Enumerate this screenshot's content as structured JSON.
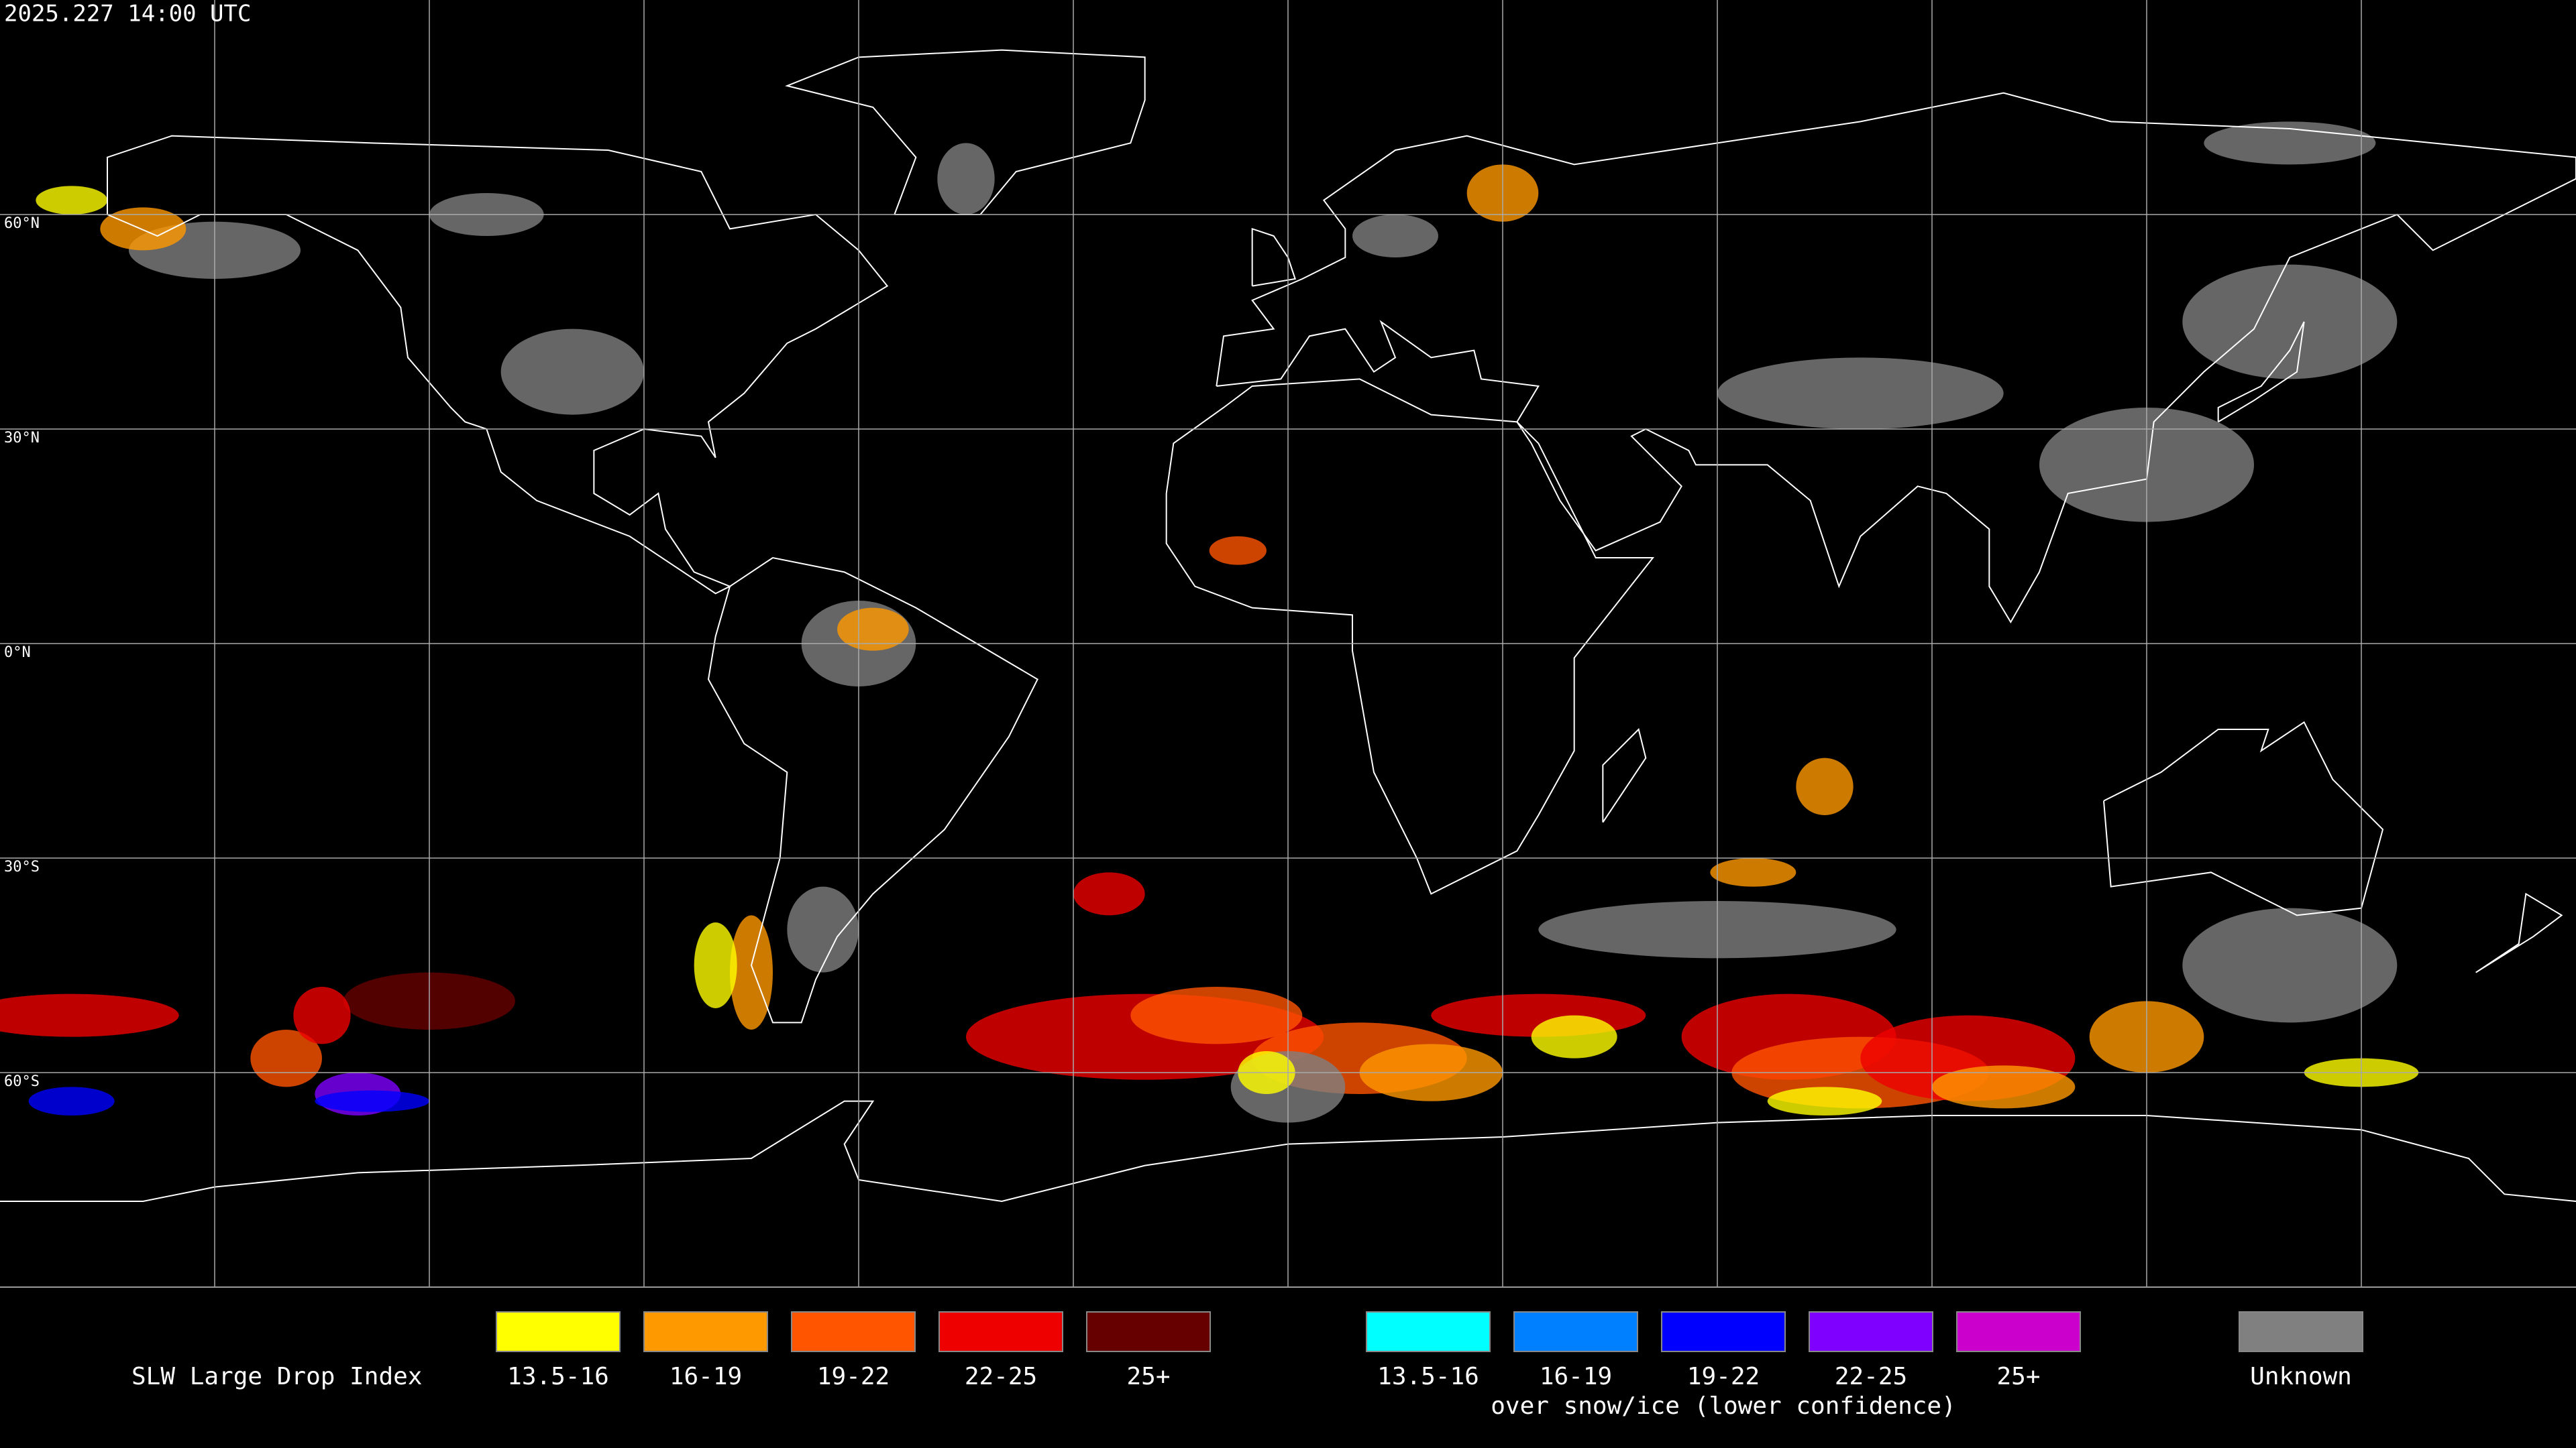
{
  "title": "2025.227 14:00 UTC",
  "grid_labels": [
    "60°N",
    "30°N",
    "0°N",
    "30°S",
    "60°S"
  ],
  "legend": {
    "title": "SLW Large Drop Index",
    "groups": [
      {
        "items": [
          {
            "label": "13.5-16",
            "color": "#ffff00"
          },
          {
            "label": "16-19",
            "color": "#ff9900"
          },
          {
            "label": "19-22",
            "color": "#ff5500"
          },
          {
            "label": "22-25",
            "color": "#ee0000"
          },
          {
            "label": "25+",
            "color": "#660000"
          }
        ]
      },
      {
        "items": [
          {
            "label": "13.5-16",
            "color": "#00ffff"
          },
          {
            "label": "16-19",
            "color": "#0080ff"
          },
          {
            "label": "19-22",
            "color": "#0000ff"
          },
          {
            "label": "22-25",
            "color": "#8000ff"
          },
          {
            "label": "25+",
            "color": "#cc00cc"
          }
        ],
        "caption": "over snow/ice (lower confidence)"
      },
      {
        "items": [
          {
            "label": "Unknown",
            "color": "#808080"
          }
        ]
      }
    ]
  }
}
